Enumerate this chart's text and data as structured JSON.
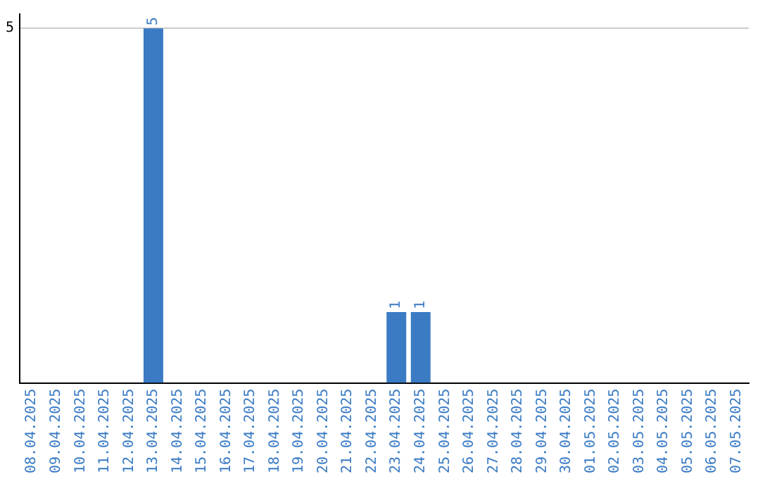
{
  "chart_data": {
    "type": "bar",
    "categories": [
      "08.04.2025",
      "09.04.2025",
      "10.04.2025",
      "11.04.2025",
      "12.04.2025",
      "13.04.2025",
      "14.04.2025",
      "15.04.2025",
      "16.04.2025",
      "17.04.2025",
      "18.04.2025",
      "19.04.2025",
      "20.04.2025",
      "21.04.2025",
      "22.04.2025",
      "23.04.2025",
      "24.04.2025",
      "25.04.2025",
      "26.04.2025",
      "27.04.2025",
      "28.04.2025",
      "29.04.2025",
      "30.04.2025",
      "01.05.2025",
      "02.05.2025",
      "03.05.2025",
      "04.05.2025",
      "05.05.2025",
      "06.05.2025",
      "07.05.2025"
    ],
    "values": [
      0,
      0,
      0,
      0,
      0,
      5,
      0,
      0,
      0,
      0,
      0,
      0,
      0,
      0,
      0,
      1,
      1,
      0,
      0,
      0,
      0,
      0,
      0,
      0,
      0,
      0,
      0,
      0,
      0,
      0
    ],
    "value_labels": [
      null,
      null,
      null,
      null,
      null,
      "5",
      null,
      null,
      null,
      null,
      null,
      null,
      null,
      null,
      null,
      "1",
      "1",
      null,
      null,
      null,
      null,
      null,
      null,
      null,
      null,
      null,
      null,
      null,
      null,
      null
    ],
    "color": "#3a7bc4",
    "ylim": [
      0,
      5.2
    ],
    "yticks": [
      5
    ],
    "grid": "y",
    "legend": false
  }
}
